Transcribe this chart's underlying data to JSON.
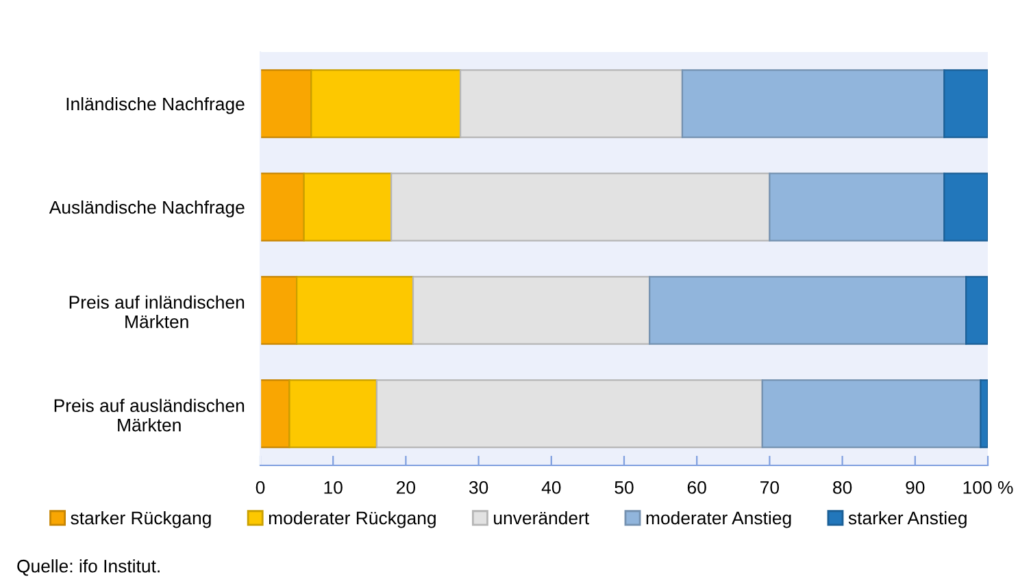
{
  "chart_data": {
    "type": "bar",
    "orientation": "horizontal",
    "stacked": true,
    "categories": [
      "Inländische Nachfrage",
      "Ausländische Nachfrage",
      "Preis auf inländischen\nMärkten",
      "Preis auf ausländischen\nMärkten"
    ],
    "series": [
      {
        "name": "starker Rückgang",
        "color": "#f9a602",
        "values": [
          7,
          6,
          5,
          4
        ]
      },
      {
        "name": "moderater Rückgang",
        "color": "#fdc800",
        "values": [
          20.5,
          12,
          16,
          12
        ]
      },
      {
        "name": "unverändert",
        "color": "#e2e2e2",
        "values": [
          30.5,
          52,
          32.5,
          53
        ]
      },
      {
        "name": "moderater Anstieg",
        "color": "#91b5dc",
        "values": [
          36,
          24,
          43.5,
          30
        ]
      },
      {
        "name": "starker Anstieg",
        "color": "#2277bb",
        "values": [
          6,
          6,
          3,
          1
        ]
      }
    ],
    "xlim": [
      0,
      100
    ],
    "xticks": [
      0,
      10,
      20,
      30,
      40,
      50,
      60,
      70,
      80,
      90,
      {
        "value": 100,
        "label": "100 %"
      }
    ],
    "grid": false,
    "legend": "bottom",
    "annotations": [
      "Quelle: ifo Institut."
    ]
  }
}
